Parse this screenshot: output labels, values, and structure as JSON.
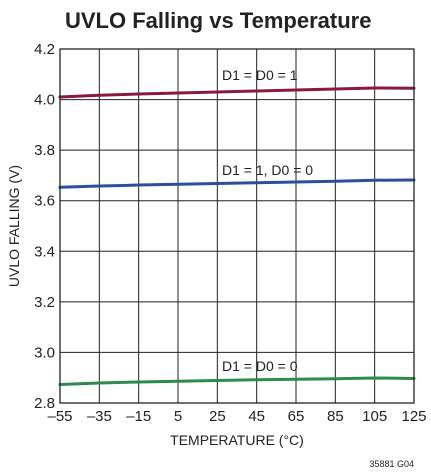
{
  "chart_data": {
    "type": "line",
    "title": "UVLO Falling vs Temperature",
    "xlabel": "TEMPERATURE (°C)",
    "ylabel": "UVLO FALLING (V)",
    "xlim": [
      -55,
      125
    ],
    "ylim": [
      2.8,
      4.2
    ],
    "x_ticks": [
      -55,
      -35,
      -15,
      5,
      25,
      45,
      65,
      85,
      105,
      125
    ],
    "x_tick_labels": [
      "–55",
      "–35",
      "–15",
      "5",
      "25",
      "45",
      "65",
      "85",
      "105",
      "125"
    ],
    "y_ticks": [
      2.8,
      3.0,
      3.2,
      3.4,
      3.6,
      3.8,
      4.0,
      4.2
    ],
    "y_tick_labels": [
      "2.8",
      "3.0",
      "3.2",
      "3.4",
      "3.6",
      "3.8",
      "4.0",
      "4.2"
    ],
    "grid": true,
    "series": [
      {
        "name": "D1 = D0 = 1",
        "color": "#8b1a3a",
        "x": [
          -55,
          -35,
          -15,
          5,
          25,
          45,
          65,
          85,
          105,
          125
        ],
        "values": [
          4.01,
          4.017,
          4.022,
          4.026,
          4.03,
          4.034,
          4.038,
          4.042,
          4.046,
          4.045
        ]
      },
      {
        "name": "D1 = 1, D0 = 0",
        "color": "#2b4f9e",
        "x": [
          -55,
          -35,
          -15,
          5,
          25,
          45,
          65,
          85,
          105,
          125
        ],
        "values": [
          3.653,
          3.658,
          3.662,
          3.665,
          3.668,
          3.671,
          3.674,
          3.677,
          3.681,
          3.682
        ]
      },
      {
        "name": "D1 = D0 = 0",
        "color": "#2e8b4e",
        "x": [
          -55,
          -35,
          -15,
          5,
          25,
          45,
          65,
          85,
          105,
          125
        ],
        "values": [
          2.873,
          2.879,
          2.883,
          2.886,
          2.889,
          2.892,
          2.894,
          2.896,
          2.899,
          2.897
        ]
      }
    ],
    "annotations": [
      "D1 = D0 = 1",
      "D1 = 1, D0 = 0",
      "D1 = D0 = 0"
    ],
    "figure_id": "35881 G04"
  }
}
